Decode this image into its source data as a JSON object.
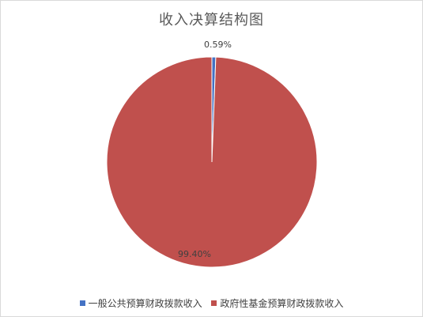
{
  "chart_data": {
    "type": "pie",
    "title": "收入决算结构图",
    "categories": [
      "一般公共预算财政拨款收入",
      "政府性基金预算财政拨款收入"
    ],
    "values": [
      0.59,
      99.4
    ],
    "data_labels": [
      "0.59%",
      "99.40%"
    ],
    "colors": [
      "#4472C4",
      "#C0504D"
    ],
    "legend_position": "bottom",
    "start_angle_deg": 0,
    "direction": "clockwise"
  }
}
